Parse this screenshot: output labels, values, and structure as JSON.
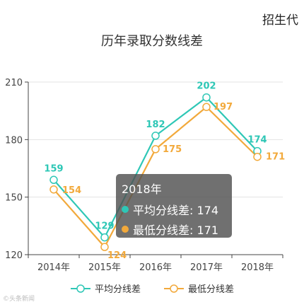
{
  "brand": "招生代",
  "watermark": "©头条新闻",
  "chart_data": {
    "type": "line",
    "title": "历年录取分数线差",
    "categories": [
      "2014年",
      "2015年",
      "2016年",
      "2017年",
      "2018年"
    ],
    "series": [
      {
        "name": "平均分线差",
        "values": [
          159,
          129,
          182,
          202,
          174
        ],
        "color": "#2ec7b6"
      },
      {
        "name": "最低分线差",
        "values": [
          154,
          124,
          175,
          197,
          171
        ],
        "color": "#f2a93b"
      }
    ],
    "ylim": [
      120,
      210
    ],
    "yticks": [
      "210",
      "180",
      "150",
      "120"
    ],
    "grid": true,
    "legend_position": "bottom"
  },
  "tooltip": {
    "title": "2018年",
    "rows": [
      {
        "label": "平均分线差: 174",
        "color": "#2ec7b6"
      },
      {
        "label": "最低分线差: 171",
        "color": "#f2a93b"
      }
    ]
  }
}
